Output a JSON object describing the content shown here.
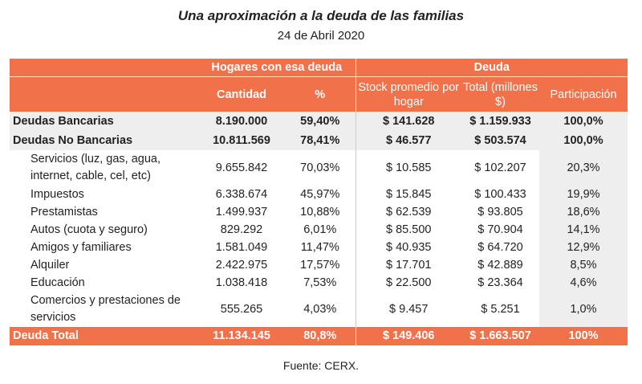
{
  "header": {
    "title": "Una aproximación a la deuda de las familias",
    "subtitle": "24 de Abril 2020"
  },
  "table": {
    "groups": [
      "Hogares con esa deuda",
      "Deuda"
    ],
    "columns": [
      "Cantidad",
      "%",
      "Stock promedio por hogar",
      "Total (millones $)",
      "Participación"
    ],
    "rows": [
      [
        "Deudas Bancarias",
        "8.190.000",
        "59,40%",
        "$ 141.628",
        "$ 1.159.933",
        "100,0%"
      ],
      [
        "Deudas No Bancarias",
        "10.811.569",
        "78,41%",
        "$ 46.577",
        "$ 503.574",
        "100,0%"
      ],
      [
        "Servicios (luz, gas, agua, internet, cable, cel, etc)",
        "9.655.842",
        "70,03%",
        "$ 10.585",
        "$ 102.207",
        "20,3%"
      ],
      [
        "Impuestos",
        "6.338.674",
        "45,97%",
        "$ 15.845",
        "$ 100.433",
        "19,9%"
      ],
      [
        "Prestamistas",
        "1.499.937",
        "10,88%",
        "$ 62.539",
        "$ 93.805",
        "18,6%"
      ],
      [
        "Autos (cuota y seguro)",
        "829.292",
        "6,01%",
        "$ 85.500",
        "$ 70.904",
        "14,1%"
      ],
      [
        "Amigos y familiares",
        "1.581.049",
        "11,47%",
        "$ 40.935",
        "$ 64.720",
        "12,9%"
      ],
      [
        "Alquiler",
        "2.422.975",
        "17,57%",
        "$ 17.701",
        "$ 42.889",
        "8,5%"
      ],
      [
        "Educación",
        "1.038.418",
        "7,53%",
        "$ 22.500",
        "$ 23.364",
        "4,6%"
      ],
      [
        "Comercios y prestaciones de servicios",
        "555.265",
        "4,03%",
        "$ 9.457",
        "$ 5.251",
        "1,0%"
      ]
    ],
    "total": [
      "Deuda Total",
      "11.134.145",
      "80,8%",
      "$ 149.406",
      "$ 1.663.507",
      "100%"
    ]
  },
  "source": "Fuente: CERX."
}
